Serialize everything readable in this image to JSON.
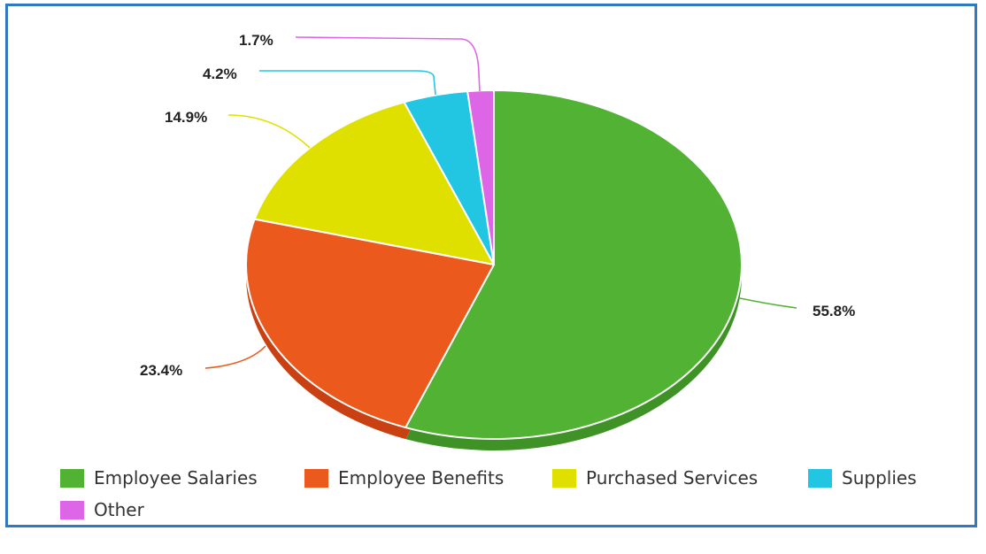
{
  "chart_data": {
    "type": "pie",
    "title": "",
    "legend_position": "bottom",
    "three_d": true,
    "slices": [
      {
        "name": "Employee Salaries",
        "value": 55.8,
        "label": "55.8%",
        "color": "#52b234",
        "shadow": "#3f9326"
      },
      {
        "name": "Employee Benefits",
        "value": 23.4,
        "label": "23.4%",
        "color": "#eb5a1c",
        "shadow": "#c94012"
      },
      {
        "name": "Purchased Services",
        "value": 14.9,
        "label": "14.9%",
        "color": "#dfe000",
        "shadow": "#bcbc00"
      },
      {
        "name": "Supplies",
        "value": 4.2,
        "label": "4.2%",
        "color": "#22c6e3",
        "shadow": "#18a3bb"
      },
      {
        "name": "Other",
        "value": 1.7,
        "label": "1.7%",
        "color": "#dd66e6",
        "shadow": "#b84cc1"
      }
    ]
  },
  "frame_color": "#2f79c1"
}
